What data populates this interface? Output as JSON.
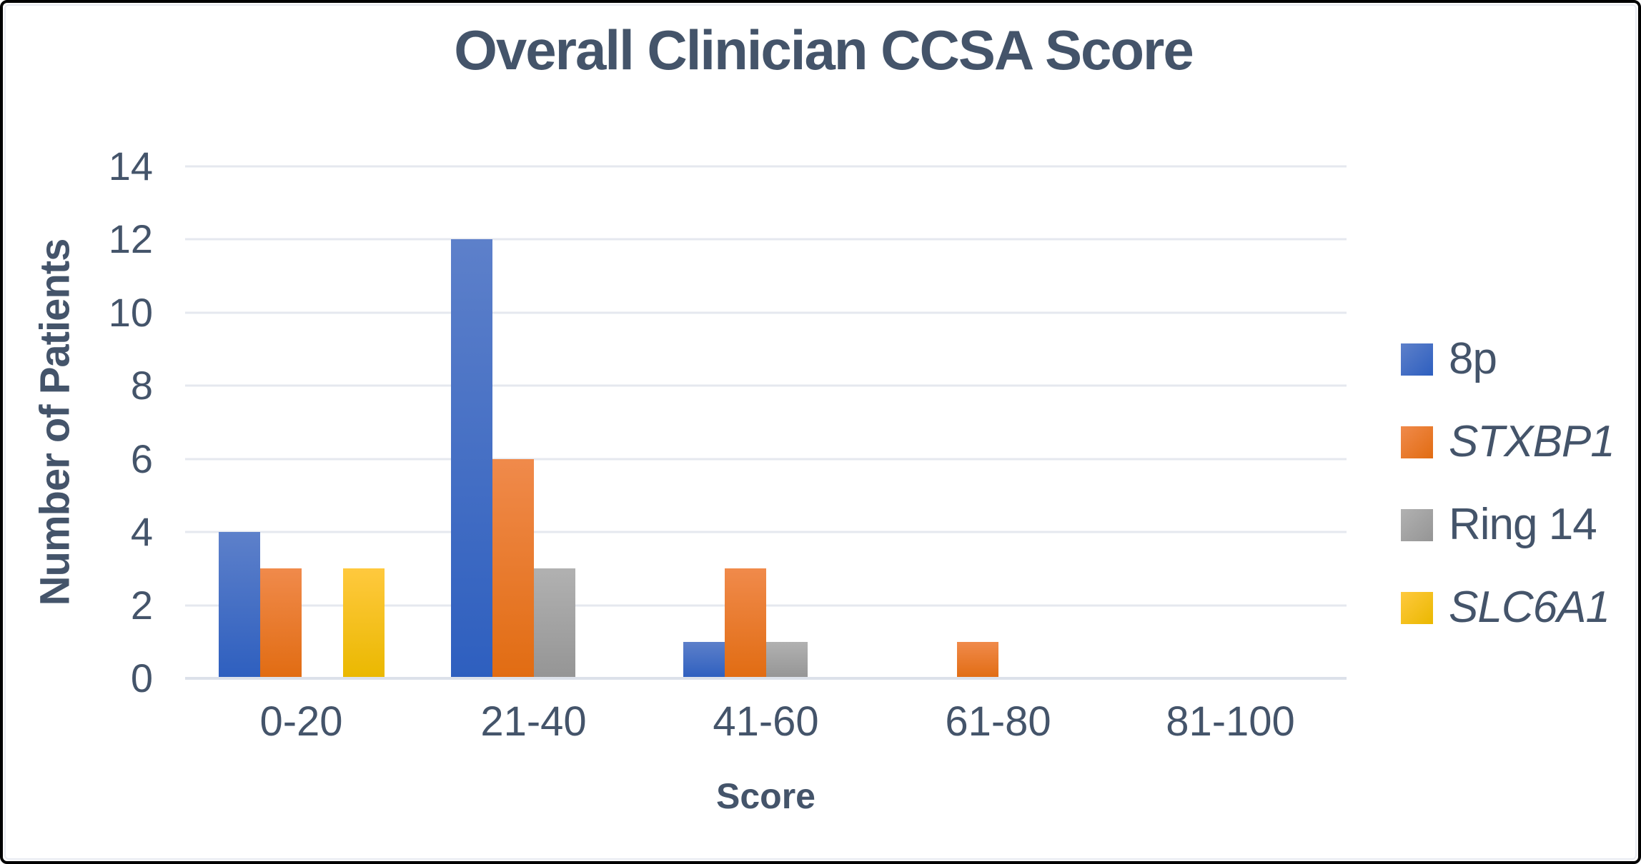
{
  "style": {
    "text_color": "#44546A",
    "gridline_color": "#E5E8EF",
    "axis_line_color": "#DCE1EA",
    "background_color": "#FFFFFF",
    "frame_border_color": "#000000"
  },
  "chart_data": {
    "type": "bar",
    "title": "Overall Clinician CCSA Score",
    "xlabel": "Score",
    "ylabel": "Number of Patients",
    "ylim": [
      0,
      14
    ],
    "yticks": [
      0,
      2,
      4,
      6,
      8,
      10,
      12,
      14
    ],
    "grid": true,
    "legend_position": "right",
    "categories": [
      "0-20",
      "21-40",
      "41-60",
      "61-80",
      "81-100"
    ],
    "series": [
      {
        "name": "8p",
        "italic": false,
        "color_top": "#5D80CA",
        "color_bottom": "#2E5FBF",
        "values": [
          4,
          12,
          1,
          0,
          0
        ]
      },
      {
        "name": "STXBP1",
        "italic": true,
        "color_top": "#F08A4B",
        "color_bottom": "#E16C12",
        "values": [
          3,
          6,
          3,
          1,
          0
        ]
      },
      {
        "name": "Ring 14",
        "italic": false,
        "color_top": "#B1B1B1",
        "color_bottom": "#959595",
        "values": [
          0,
          3,
          1,
          0,
          0
        ]
      },
      {
        "name": "SLC6A1",
        "italic": true,
        "color_top": "#FFC93E",
        "color_bottom": "#EAB800",
        "values": [
          3,
          0,
          0,
          0,
          0
        ]
      }
    ]
  }
}
